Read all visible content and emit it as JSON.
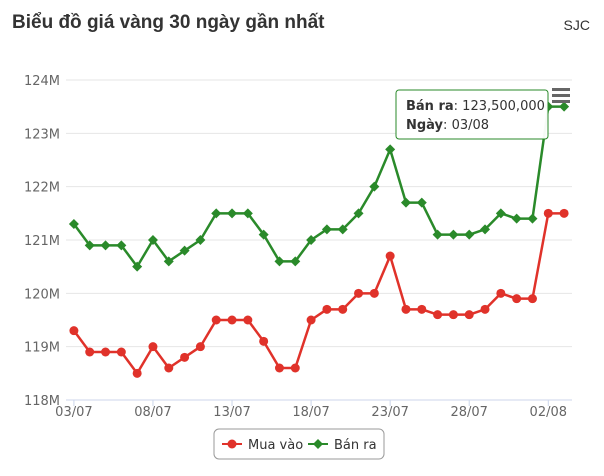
{
  "header": {
    "title": "Biểu đồ giá vàng 30 ngày gần nhất",
    "brand": "SJC"
  },
  "tooltip": {
    "label1": "Bán ra",
    "value1": "123,500,000",
    "label2": "Ngày",
    "value2": "03/08"
  },
  "legend": {
    "item1": "Mua vào",
    "item2": "Bán ra"
  },
  "menu_icon": "hamburger-icon",
  "chart_data": {
    "type": "line",
    "title": "Biểu đồ giá vàng 30 ngày gần nhất",
    "xlabel": "",
    "ylabel": "",
    "ylim": [
      118,
      124
    ],
    "y_ticks": [
      "118M",
      "119M",
      "120M",
      "121M",
      "122M",
      "123M",
      "124M"
    ],
    "x_ticks": [
      "03/07",
      "08/07",
      "13/07",
      "18/07",
      "23/07",
      "28/07",
      "02/08"
    ],
    "x": [
      "03/07",
      "04/07",
      "05/07",
      "06/07",
      "07/07",
      "08/07",
      "09/07",
      "10/07",
      "11/07",
      "12/07",
      "13/07",
      "14/07",
      "15/07",
      "16/07",
      "17/07",
      "18/07",
      "19/07",
      "20/07",
      "21/07",
      "22/07",
      "23/07",
      "24/07",
      "25/07",
      "26/07",
      "27/07",
      "28/07",
      "29/07",
      "30/07",
      "31/07",
      "01/08",
      "02/08",
      "03/08"
    ],
    "series": [
      {
        "name": "Mua vào",
        "color": "#e0322a",
        "values": [
          119.3,
          118.9,
          118.9,
          118.9,
          118.5,
          119.0,
          118.6,
          118.8,
          119.0,
          119.5,
          119.5,
          119.5,
          119.1,
          118.6,
          118.6,
          119.5,
          119.7,
          119.7,
          120.0,
          120.0,
          120.7,
          119.7,
          119.7,
          119.6,
          119.6,
          119.6,
          119.7,
          120.0,
          119.9,
          119.9,
          121.5,
          121.5
        ]
      },
      {
        "name": "Bán ra",
        "color": "#2a8a2a",
        "values": [
          121.3,
          120.9,
          120.9,
          120.9,
          120.5,
          121.0,
          120.6,
          120.8,
          121.0,
          121.5,
          121.5,
          121.5,
          121.1,
          120.6,
          120.6,
          121.0,
          121.2,
          121.2,
          121.5,
          122.0,
          122.7,
          121.7,
          121.7,
          121.1,
          121.1,
          121.1,
          121.2,
          121.5,
          121.4,
          121.4,
          123.5,
          123.5
        ]
      }
    ],
    "grid": true,
    "legend_position": "bottom-center"
  }
}
